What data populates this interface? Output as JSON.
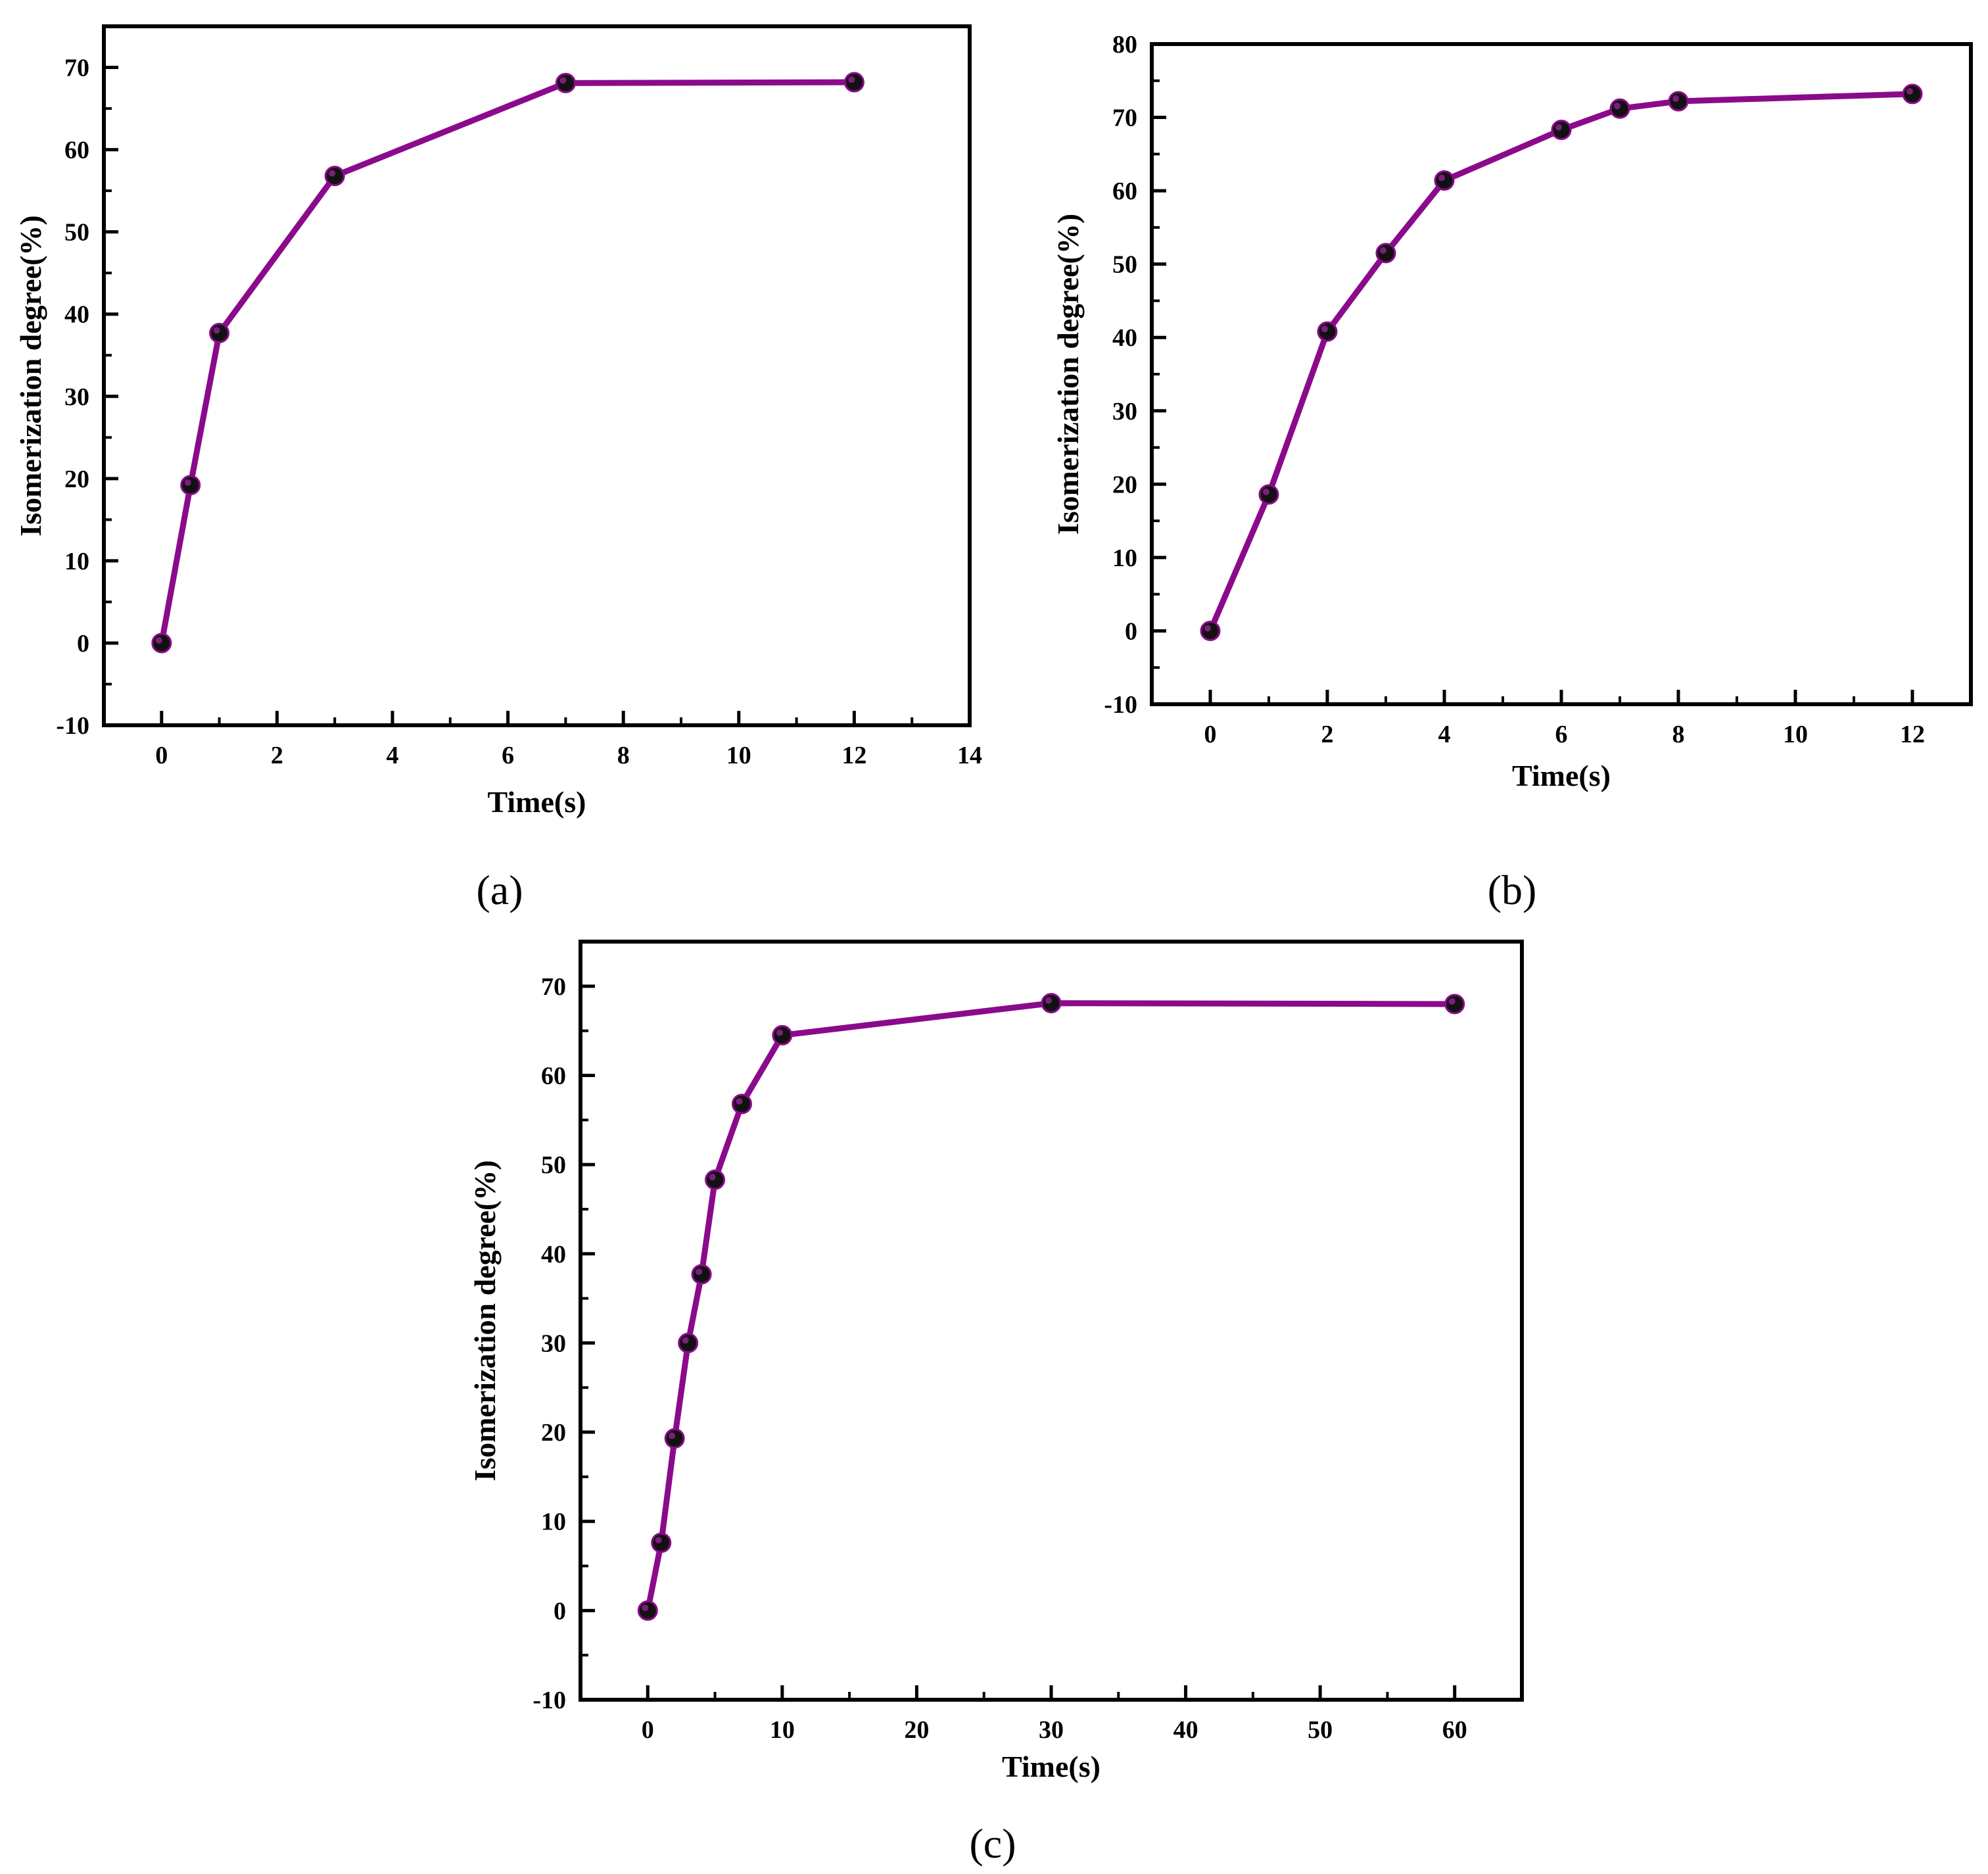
{
  "colors": {
    "line": "#8b0a8b",
    "marker_fill": "#111111",
    "marker_highlight": "#7a1f7a",
    "axis": "#000000",
    "background": "#ffffff"
  },
  "chart_data": [
    {
      "type": "line",
      "panel_label": "(a)",
      "xlabel": "Time(s)",
      "ylabel": "Isomerization degree(%)",
      "xlim": [
        -1,
        14
      ],
      "ylim": [
        -10,
        75
      ],
      "xticks": [
        0,
        2,
        4,
        6,
        8,
        10,
        12,
        14
      ],
      "yticks": [
        -10,
        0,
        10,
        20,
        30,
        40,
        50,
        60,
        70
      ],
      "grid": false,
      "series": [
        {
          "x": [
            0,
            0.5,
            1,
            3,
            7,
            12
          ],
          "y": [
            0,
            19.2,
            37.7,
            56.8,
            68.1,
            68.2
          ]
        }
      ]
    },
    {
      "type": "line",
      "panel_label": "(b)",
      "xlabel": "Time(s)",
      "ylabel": "Isomerization degree(%)",
      "xlim": [
        -1,
        13
      ],
      "ylim": [
        -10,
        80
      ],
      "xticks": [
        0,
        2,
        4,
        6,
        8,
        10,
        12
      ],
      "yticks": [
        -10,
        0,
        10,
        20,
        30,
        40,
        50,
        60,
        70,
        80
      ],
      "grid": false,
      "series": [
        {
          "x": [
            0,
            1,
            2,
            3,
            4,
            6,
            7,
            8,
            12
          ],
          "y": [
            0,
            18.6,
            40.8,
            51.5,
            61.4,
            68.3,
            71.2,
            72.2,
            73.2
          ]
        }
      ]
    },
    {
      "type": "line",
      "panel_label": "(c)",
      "xlabel": "Time(s)",
      "ylabel": "Isomerization degree(%)",
      "xlim": [
        -5,
        65
      ],
      "ylim": [
        -10,
        75
      ],
      "xticks": [
        0,
        10,
        20,
        30,
        40,
        50,
        60
      ],
      "yticks": [
        -10,
        0,
        10,
        20,
        30,
        40,
        50,
        60,
        70
      ],
      "grid": false,
      "series": [
        {
          "x": [
            0,
            1,
            2,
            3,
            4,
            5,
            7,
            10,
            30,
            60
          ],
          "y": [
            0,
            7.6,
            19.3,
            30.0,
            37.7,
            48.3,
            56.8,
            64.5,
            68.1,
            68.0
          ]
        }
      ]
    }
  ]
}
